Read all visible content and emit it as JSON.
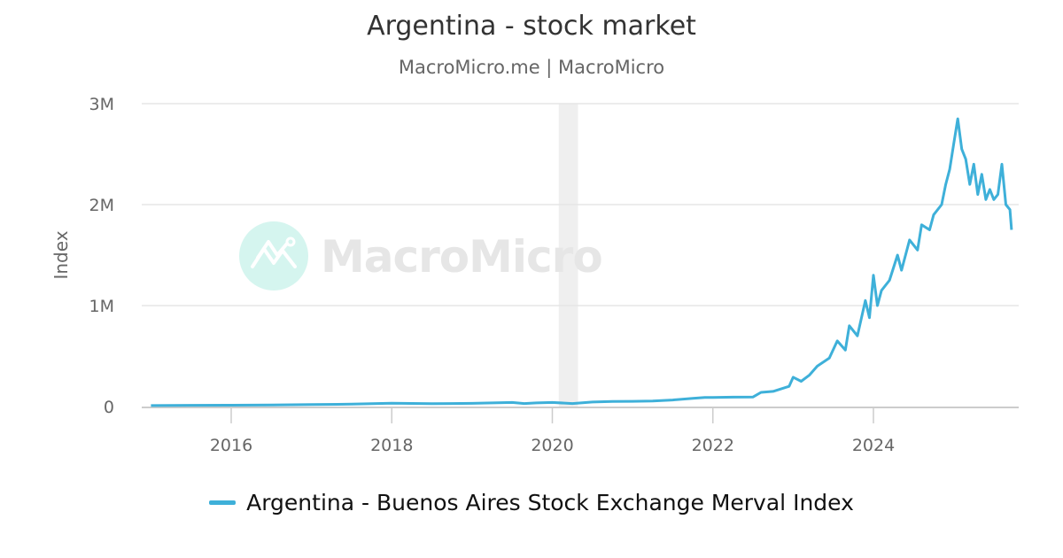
{
  "header": {
    "title": "Argentina - stock market",
    "subtitle": "MacroMicro.me | MacroMicro"
  },
  "watermark": {
    "text": "MacroMicro",
    "circle_color": "#d5f5ef",
    "text_color": "#e6e6e6"
  },
  "legend": {
    "items": [
      {
        "label": "Argentina - Buenos Aires Stock Exchange Merval Index",
        "color": "#3eb0d9"
      }
    ]
  },
  "colors": {
    "series": "#3eb0d9",
    "grid": "#e6e6e6",
    "axis": "#cccccc",
    "recession": "#efefef"
  },
  "chart_data": {
    "type": "line",
    "title": "Argentina - stock market",
    "subtitle": "MacroMicro.me | MacroMicro",
    "xlabel": "",
    "ylabel": "Index",
    "ylim": [
      0,
      3000000
    ],
    "xlim": [
      2014.9,
      2025.85
    ],
    "yticks": [
      {
        "value": 0,
        "label": "0"
      },
      {
        "value": 1000000,
        "label": "1M"
      },
      {
        "value": 2000000,
        "label": "2M"
      },
      {
        "value": 3000000,
        "label": "3M"
      }
    ],
    "xticks": [
      {
        "value": 2016,
        "label": "2016"
      },
      {
        "value": 2018,
        "label": "2018"
      },
      {
        "value": 2020,
        "label": "2020"
      },
      {
        "value": 2022,
        "label": "2022"
      },
      {
        "value": 2024,
        "label": "2024"
      }
    ],
    "grid": true,
    "legend_position": "bottom",
    "shaded_regions": [
      {
        "start": 2020.08,
        "end": 2020.32,
        "label": "recession"
      }
    ],
    "series": [
      {
        "name": "Argentina - Buenos Aires Stock Exchange Merval Index",
        "color": "#3eb0d9",
        "x": [
          2015.0,
          2015.5,
          2016.0,
          2016.5,
          2017.0,
          2017.5,
          2018.0,
          2018.5,
          2019.0,
          2019.5,
          2019.65,
          2019.8,
          2020.0,
          2020.25,
          2020.5,
          2020.75,
          2021.0,
          2021.25,
          2021.5,
          2021.75,
          2021.9,
          2022.0,
          2022.25,
          2022.5,
          2022.6,
          2022.75,
          2022.95,
          2023.0,
          2023.1,
          2023.2,
          2023.3,
          2023.45,
          2023.55,
          2023.65,
          2023.7,
          2023.8,
          2023.9,
          2023.95,
          2024.0,
          2024.05,
          2024.1,
          2024.2,
          2024.3,
          2024.35,
          2024.45,
          2024.55,
          2024.6,
          2024.7,
          2024.75,
          2024.85,
          2024.9,
          2024.95,
          2025.0,
          2025.05,
          2025.1,
          2025.15,
          2025.2,
          2025.25,
          2025.3,
          2025.35,
          2025.4,
          2025.45,
          2025.5,
          2025.55,
          2025.6,
          2025.65,
          2025.7,
          2025.72
        ],
        "values": [
          10000,
          12000,
          13000,
          15000,
          19000,
          24000,
          33000,
          28000,
          32000,
          40000,
          30000,
          36000,
          40000,
          30000,
          45000,
          50000,
          52000,
          55000,
          65000,
          82000,
          90000,
          90000,
          93000,
          95000,
          140000,
          150000,
          200000,
          290000,
          250000,
          310000,
          400000,
          480000,
          650000,
          560000,
          800000,
          700000,
          1050000,
          880000,
          1300000,
          1000000,
          1150000,
          1250000,
          1500000,
          1350000,
          1650000,
          1550000,
          1800000,
          1750000,
          1900000,
          2000000,
          2200000,
          2350000,
          2600000,
          2850000,
          2550000,
          2450000,
          2200000,
          2400000,
          2100000,
          2300000,
          2050000,
          2150000,
          2050000,
          2100000,
          2400000,
          2000000,
          1950000,
          1750000
        ]
      }
    ]
  }
}
